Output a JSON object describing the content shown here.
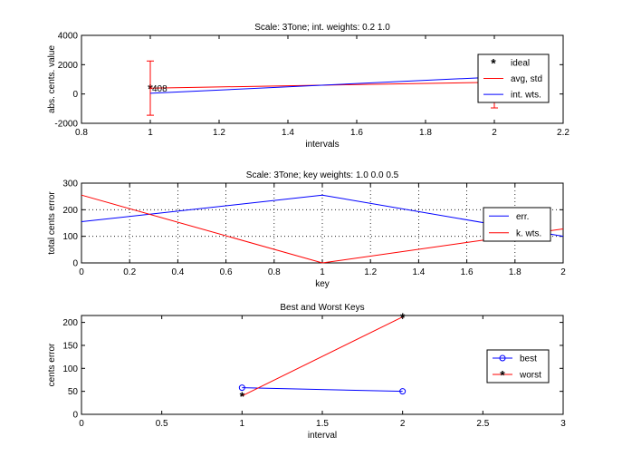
{
  "chart_data": [
    {
      "type": "line",
      "title": "Scale:  3Tone;  int. weights: 0.2 1.0",
      "xlabel": "intervals",
      "ylabel": "abs. cents. value",
      "xlim": [
        0.8,
        2.2
      ],
      "ylim": [
        -2000,
        4000
      ],
      "xticks": [
        "0.8",
        "1",
        "1.2",
        "1.4",
        "1.6",
        "1.8",
        "2",
        "2.2"
      ],
      "yticks": [
        "-2000",
        "0",
        "2000",
        "4000"
      ],
      "grid": false,
      "legend": "right",
      "annotations": [
        {
          "text": "408",
          "x": 1,
          "y": 408
        }
      ],
      "series": [
        {
          "name": "ideal",
          "marker": "*",
          "color": "#0000ff",
          "x": [
            1,
            2
          ],
          "y": [
            408,
            1110
          ]
        },
        {
          "name": "avg, std",
          "color": "#ff0000",
          "x": [
            1,
            2
          ],
          "y": [
            400,
            800
          ],
          "err": [
            1850,
            1750
          ]
        },
        {
          "name": "int. wts.",
          "color": "#0000ff",
          "x": [
            1,
            2
          ],
          "y": [
            50,
            1150
          ]
        }
      ]
    },
    {
      "type": "line",
      "title": "Scale:  3Tone;  key weights: 1.0 0.0 0.5",
      "xlabel": "key",
      "ylabel": "total cents error",
      "xlim": [
        0,
        2
      ],
      "ylim": [
        0,
        300
      ],
      "xticks": [
        "0",
        "0.2",
        "0.4",
        "0.6",
        "0.8",
        "1",
        "1.2",
        "1.4",
        "1.6",
        "1.8",
        "2"
      ],
      "yticks": [
        "0",
        "100",
        "200",
        "300"
      ],
      "grid": true,
      "legend": "right",
      "series": [
        {
          "name": "err.",
          "color": "#0000ff",
          "x": [
            0,
            1,
            2
          ],
          "y": [
            155,
            255,
            100
          ]
        },
        {
          "name": "k. wts.",
          "color": "#ff0000",
          "x": [
            0,
            1,
            2
          ],
          "y": [
            255,
            0,
            128
          ]
        }
      ]
    },
    {
      "type": "line",
      "title": "Best and Worst Keys",
      "xlabel": "interval",
      "ylabel": "cents error",
      "xlim": [
        0,
        3
      ],
      "ylim": [
        0,
        215
      ],
      "xticks": [
        "0",
        "0.5",
        "1",
        "1.5",
        "2",
        "2.5",
        "3"
      ],
      "yticks": [
        "0",
        "50",
        "100",
        "150",
        "200"
      ],
      "grid": false,
      "legend": "right",
      "series": [
        {
          "name": "best",
          "marker": "o",
          "color": "#0000ff",
          "x": [
            1,
            2
          ],
          "y": [
            58,
            50
          ]
        },
        {
          "name": "worst",
          "marker": "*",
          "color": "#ff0000",
          "x": [
            1,
            2
          ],
          "y": [
            40,
            212
          ]
        }
      ]
    }
  ]
}
